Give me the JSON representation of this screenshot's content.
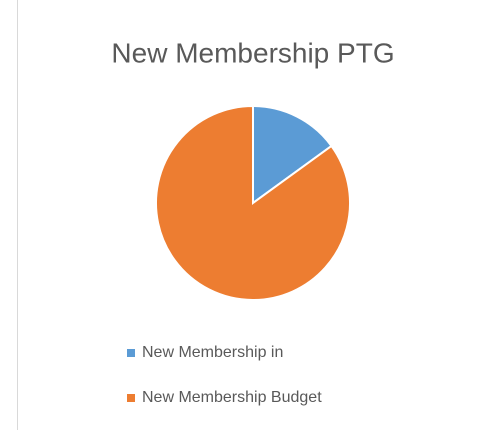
{
  "chart_data": {
    "type": "pie",
    "title": "New Membership PTG",
    "categories": [
      "New Membership in",
      "New Membership Budget"
    ],
    "values": [
      15,
      85
    ],
    "colors": [
      "#5b9bd5",
      "#ed7d31"
    ],
    "legend": "bottom"
  }
}
